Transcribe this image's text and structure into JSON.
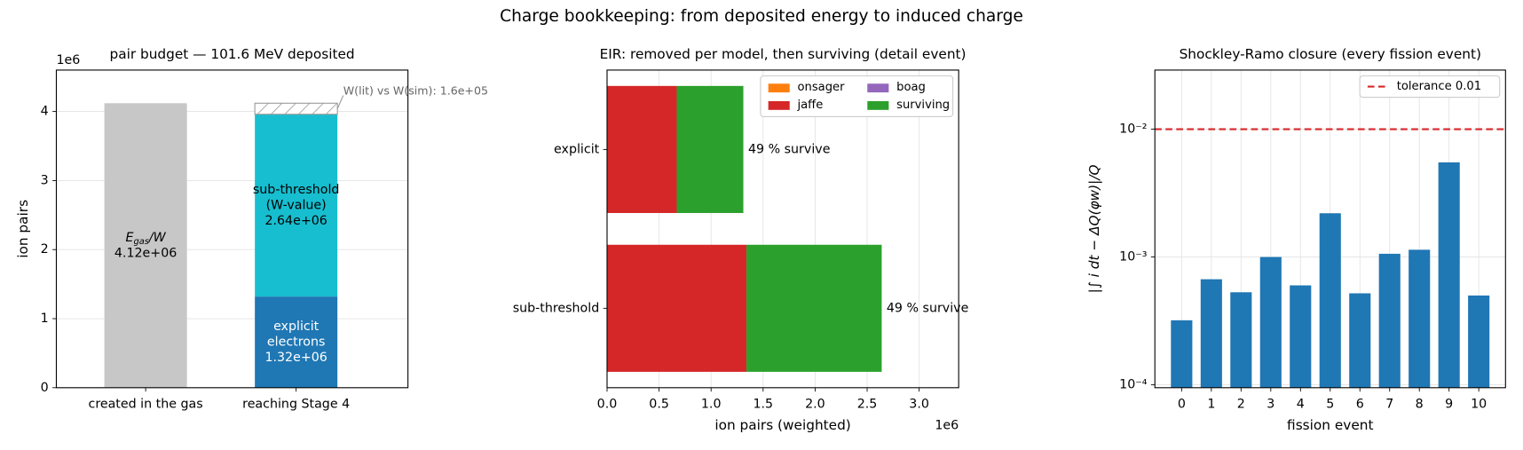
{
  "title": "Charge bookkeeping: from deposited energy to induced charge",
  "chart_data": [
    {
      "type": "stacked_bar",
      "title": "pair budget — 101.6 MeV deposited",
      "ylabel": "ion pairs",
      "y_offset_label": "1e6",
      "categories": [
        "created in the gas",
        "reaching Stage 4"
      ],
      "series": [
        {
          "name": {
            "italic": "E",
            "subscript": "gas",
            "rest": "/W"
          },
          "color": "#c7c7c7",
          "values": [
            4.12,
            null
          ],
          "value_labels": [
            "4.12e+06",
            null
          ]
        },
        {
          "name": [
            "explicit",
            "electrons"
          ],
          "color": "#1f77b4",
          "values": [
            null,
            1.32
          ],
          "value_labels": [
            null,
            "1.32e+06"
          ]
        },
        {
          "name": [
            "sub-threshold",
            "(W-value)"
          ],
          "color": "#17becf",
          "values": [
            null,
            2.64
          ],
          "value_labels": [
            null,
            "2.64e+06"
          ]
        },
        {
          "annotation": "W(lit) vs W(sim): 1.6e+05",
          "color": "#999999",
          "hatch": "/",
          "values": [
            null,
            0.16
          ]
        }
      ],
      "ylim": [
        0,
        4.6
      ],
      "yticks": [
        0,
        1,
        2,
        3,
        4
      ],
      "grid": true
    },
    {
      "type": "stacked_barh",
      "title": "EIR: removed per model, then surviving (detail event)",
      "xlabel": "ion pairs (weighted)",
      "x_offset_label": "1e6",
      "categories": [
        "sub-threshold",
        "explicit"
      ],
      "series": [
        {
          "name": "onsager",
          "color": "#ff7f0e",
          "values": [
            0,
            0
          ]
        },
        {
          "name": "jaffe",
          "color": "#d62728",
          "values": [
            1.34,
            0.67
          ]
        },
        {
          "name": "boag",
          "color": "#9467bd",
          "values": [
            0,
            0
          ]
        },
        {
          "name": "surviving",
          "color": "#2ca02c",
          "values": [
            1.3,
            0.64
          ]
        }
      ],
      "annotations": [
        "49 % survive",
        "49 % survive"
      ],
      "xlim": [
        0,
        3.38
      ],
      "xticks": [
        {
          "value": 0,
          "label": "0.0"
        },
        0.5,
        {
          "value": 1,
          "label": "1.0"
        },
        1.5,
        {
          "value": 2,
          "label": "2.0"
        },
        2.5,
        {
          "value": 3,
          "label": "3.0"
        }
      ],
      "grid": true,
      "legend": {
        "loc": "upper right",
        "ncol": 2
      }
    },
    {
      "type": "bar",
      "title": "Shockley-Ramo closure (every fission event)",
      "xlabel": "fission event",
      "ylabel": "|∫ i dt − ΔQ(φw)|/Q",
      "x": [
        0,
        1,
        2,
        3,
        4,
        5,
        6,
        7,
        8,
        9,
        10
      ],
      "values": [
        0.00032,
        0.00067,
        0.00053,
        0.001,
        0.0006,
        0.0022,
        0.00052,
        0.00106,
        0.00114,
        0.0055,
        0.0005
      ],
      "color": "#1f77b4",
      "xlim": [
        -0.9,
        10.9
      ],
      "xticks": [
        0,
        1,
        2,
        3,
        4,
        5,
        6,
        7,
        8,
        9,
        10
      ],
      "ylim": [
        9.5e-05,
        0.029
      ],
      "yscale": "log",
      "yticks": [
        {
          "value": 0.0001,
          "label": "10⁻⁴"
        },
        {
          "value": 0.001,
          "label": "10⁻³"
        },
        {
          "value": 0.01,
          "label": "10⁻²"
        }
      ],
      "grid": true,
      "hlines": [
        {
          "y": 0.01,
          "color": "#d62728",
          "style": "dashed",
          "label": "tolerance 0.01"
        }
      ],
      "legend": {
        "loc": "upper right"
      }
    }
  ]
}
